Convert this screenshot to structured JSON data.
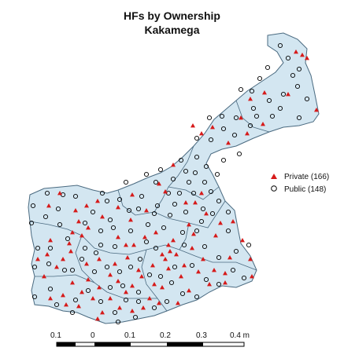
{
  "map": {
    "title": "HFs by Ownership",
    "subtitle": "Kakamega"
  },
  "legend": {
    "items": [
      {
        "label": "Private (166)",
        "symbol": "triangle",
        "color": "#d61a1a"
      },
      {
        "label": "Public (148)",
        "symbol": "circle",
        "color": "#000000"
      }
    ]
  },
  "scalebar": {
    "labels": [
      "0.1",
      "0",
      "0.1",
      "0.2",
      "0.3",
      "0.4 m"
    ]
  },
  "colors": {
    "land": "#d3e6f1",
    "boundary": "#4a6a80",
    "private": "#d61a1a",
    "public": "#000000"
  }
}
